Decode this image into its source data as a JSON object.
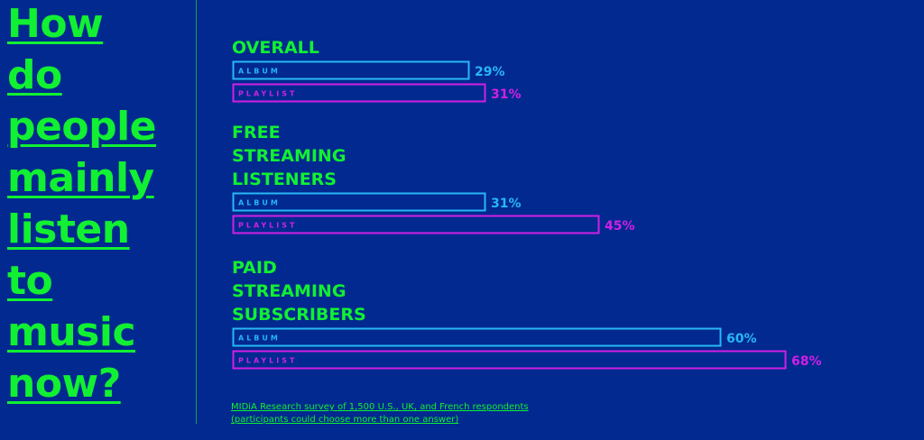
{
  "title_words": [
    "How",
    "do",
    "people",
    "mainly",
    "listen",
    "to",
    "music",
    "now?"
  ],
  "source": {
    "line1": "MIDiA Research survey of 1,500 U.S., UK, and French respondents",
    "line2": "(participants could choose more than one answer)"
  },
  "colors": {
    "background": "#01298f",
    "green": "#11f032",
    "album": "#29b6f6",
    "playlist": "#d21fe6"
  },
  "chart_data": {
    "type": "bar",
    "orientation": "horizontal",
    "categories": [
      "OVERALL",
      "FREE STREAMING LISTENERS",
      "PAID STREAMING SUBSCRIBERS"
    ],
    "category_lines": [
      [
        "OVERALL"
      ],
      [
        "FREE",
        "STREAMING",
        "LISTENERS"
      ],
      [
        "PAID",
        "STREAMING",
        "SUBSCRIBERS"
      ]
    ],
    "series": [
      {
        "name": "ALBUM",
        "values": [
          29,
          31,
          60
        ]
      },
      {
        "name": "PLAYLIST",
        "values": [
          31,
          45,
          68
        ]
      }
    ],
    "value_suffix": "%",
    "xlim": [
      0,
      100
    ],
    "grid": false,
    "legend": "none",
    "title": "",
    "xlabel": "",
    "ylabel": ""
  }
}
